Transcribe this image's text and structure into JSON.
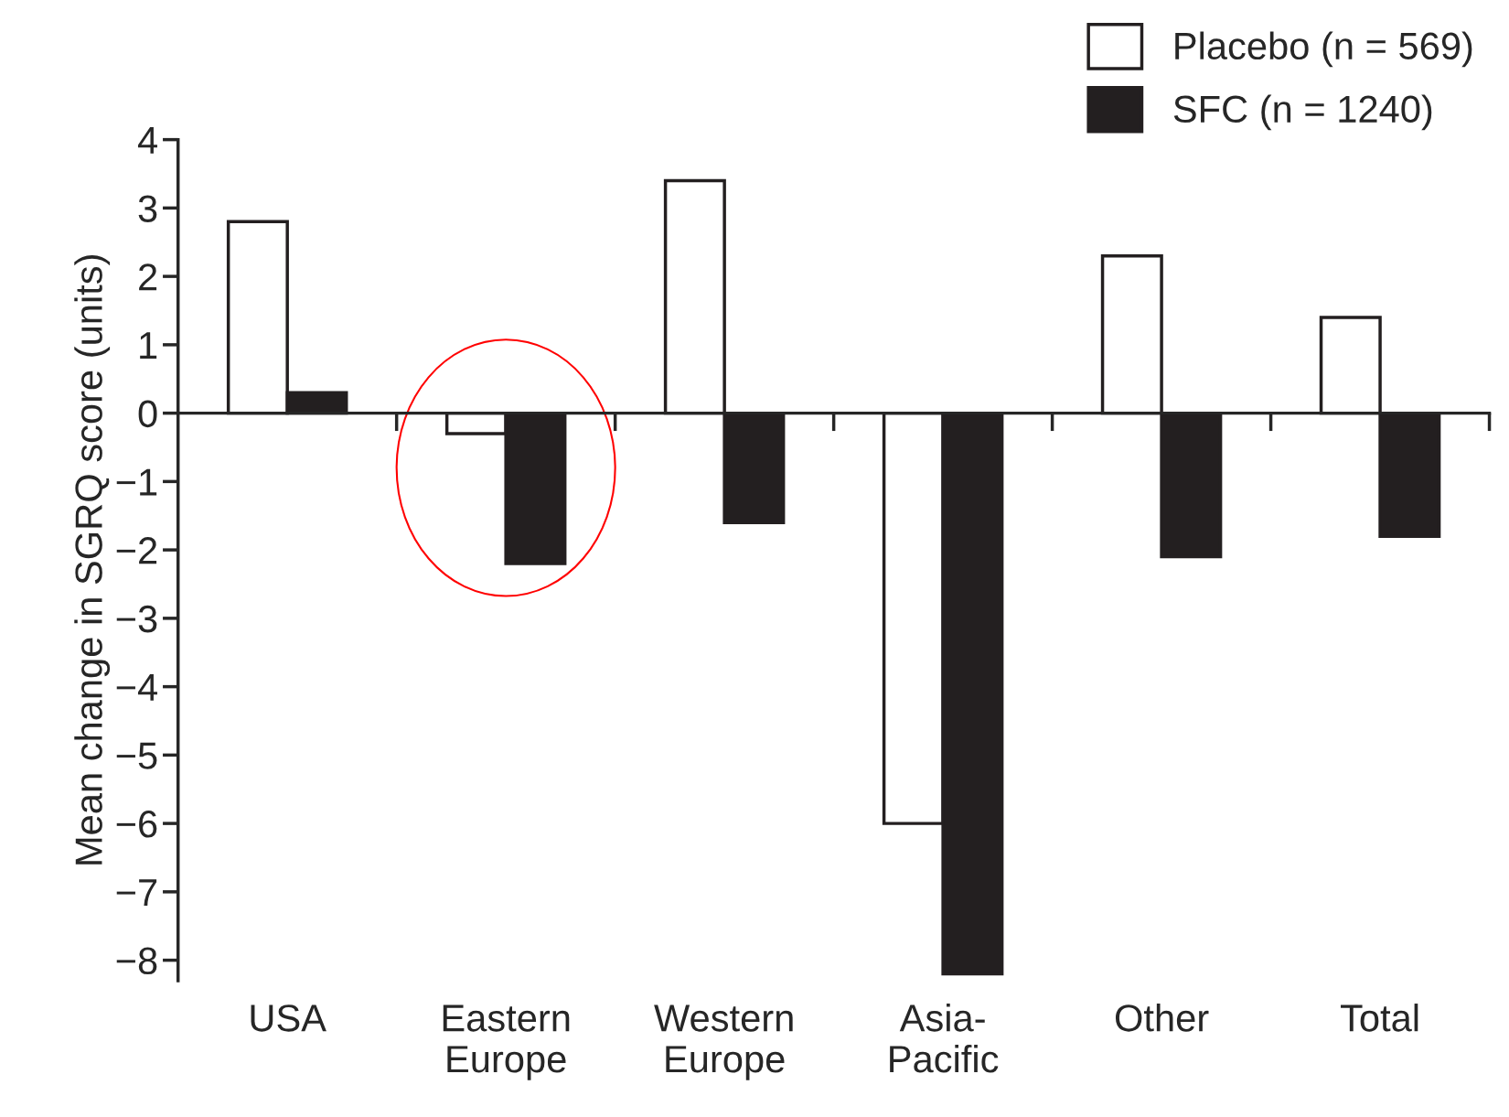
{
  "chart_data": {
    "type": "bar",
    "ylabel": "Mean change in SGRQ score (units)",
    "categories": [
      "USA",
      "Eastern\nEurope",
      "Western\nEurope",
      "Asia-\nPacific",
      "Other",
      "Total"
    ],
    "series": [
      {
        "name": "Placebo (n = 569)",
        "color": "#ffffff",
        "values": [
          2.8,
          -0.3,
          3.4,
          -6.0,
          2.3,
          1.4
        ]
      },
      {
        "name": "SFC (n = 1240)",
        "color": "#231f20",
        "values": [
          0.3,
          -2.2,
          -1.6,
          -8.2,
          -2.1,
          -1.8
        ]
      }
    ],
    "ylim": [
      -8.3,
      4
    ],
    "yticks": [
      4,
      3,
      2,
      1,
      0,
      {
        "value": -1,
        "label": "−1"
      },
      {
        "value": -2,
        "label": "−2"
      },
      {
        "value": -3,
        "label": "−3"
      },
      {
        "value": -4,
        "label": "−4"
      },
      {
        "value": -5,
        "label": "−5"
      },
      {
        "value": -6,
        "label": "−6"
      },
      {
        "value": -7,
        "label": "−7"
      },
      {
        "value": -8,
        "label": "−8"
      }
    ],
    "legend": "top right"
  }
}
